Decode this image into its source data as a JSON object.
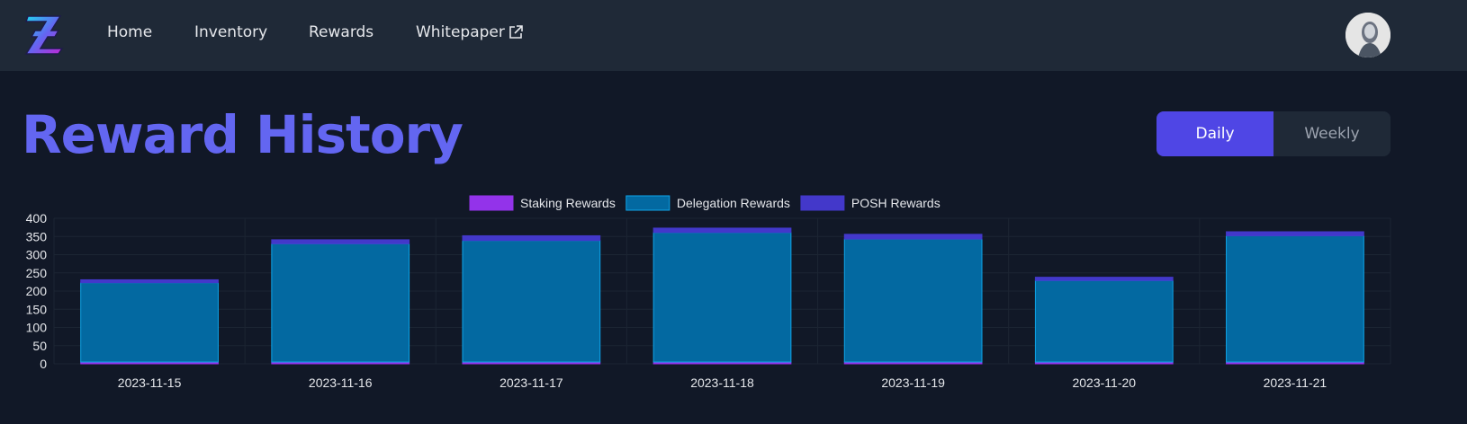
{
  "nav": {
    "items": [
      {
        "label": "Home"
      },
      {
        "label": "Inventory"
      },
      {
        "label": "Rewards"
      },
      {
        "label": "Whitepaper"
      }
    ]
  },
  "icons": {
    "logo": "brand-z-logo",
    "external": "external-link-icon",
    "avatar": "user-avatar"
  },
  "page": {
    "title": "Reward History"
  },
  "toggle": {
    "options": [
      "Daily",
      "Weekly"
    ],
    "selected": "Daily"
  },
  "colors": {
    "background": "#111827",
    "header": "#1f2937",
    "title": "#6366f1",
    "toggle_active": "#4f46e5",
    "staking": "#9333ea",
    "delegation": "#0369a1",
    "posh": "#4338ca"
  },
  "chart_data": {
    "type": "bar",
    "stacked": true,
    "categories": [
      "2023-11-15",
      "2023-11-16",
      "2023-11-17",
      "2023-11-18",
      "2023-11-19",
      "2023-11-20",
      "2023-11-21"
    ],
    "series": [
      {
        "name": "Staking Rewards",
        "color": "#9333ea",
        "values": [
          5,
          5,
          5,
          5,
          5,
          5,
          5
        ]
      },
      {
        "name": "Delegation Rewards",
        "color": "#0369a1",
        "values": [
          218,
          325,
          334,
          356,
          338,
          224,
          347
        ]
      },
      {
        "name": "POSH Rewards",
        "color": "#4338ca",
        "values": [
          8,
          11,
          13,
          12,
          13,
          9,
          11
        ]
      }
    ],
    "ylim": [
      0,
      400
    ],
    "yticks": [
      0,
      50,
      100,
      150,
      200,
      250,
      300,
      350,
      400
    ],
    "legend": "top",
    "grid": true
  }
}
